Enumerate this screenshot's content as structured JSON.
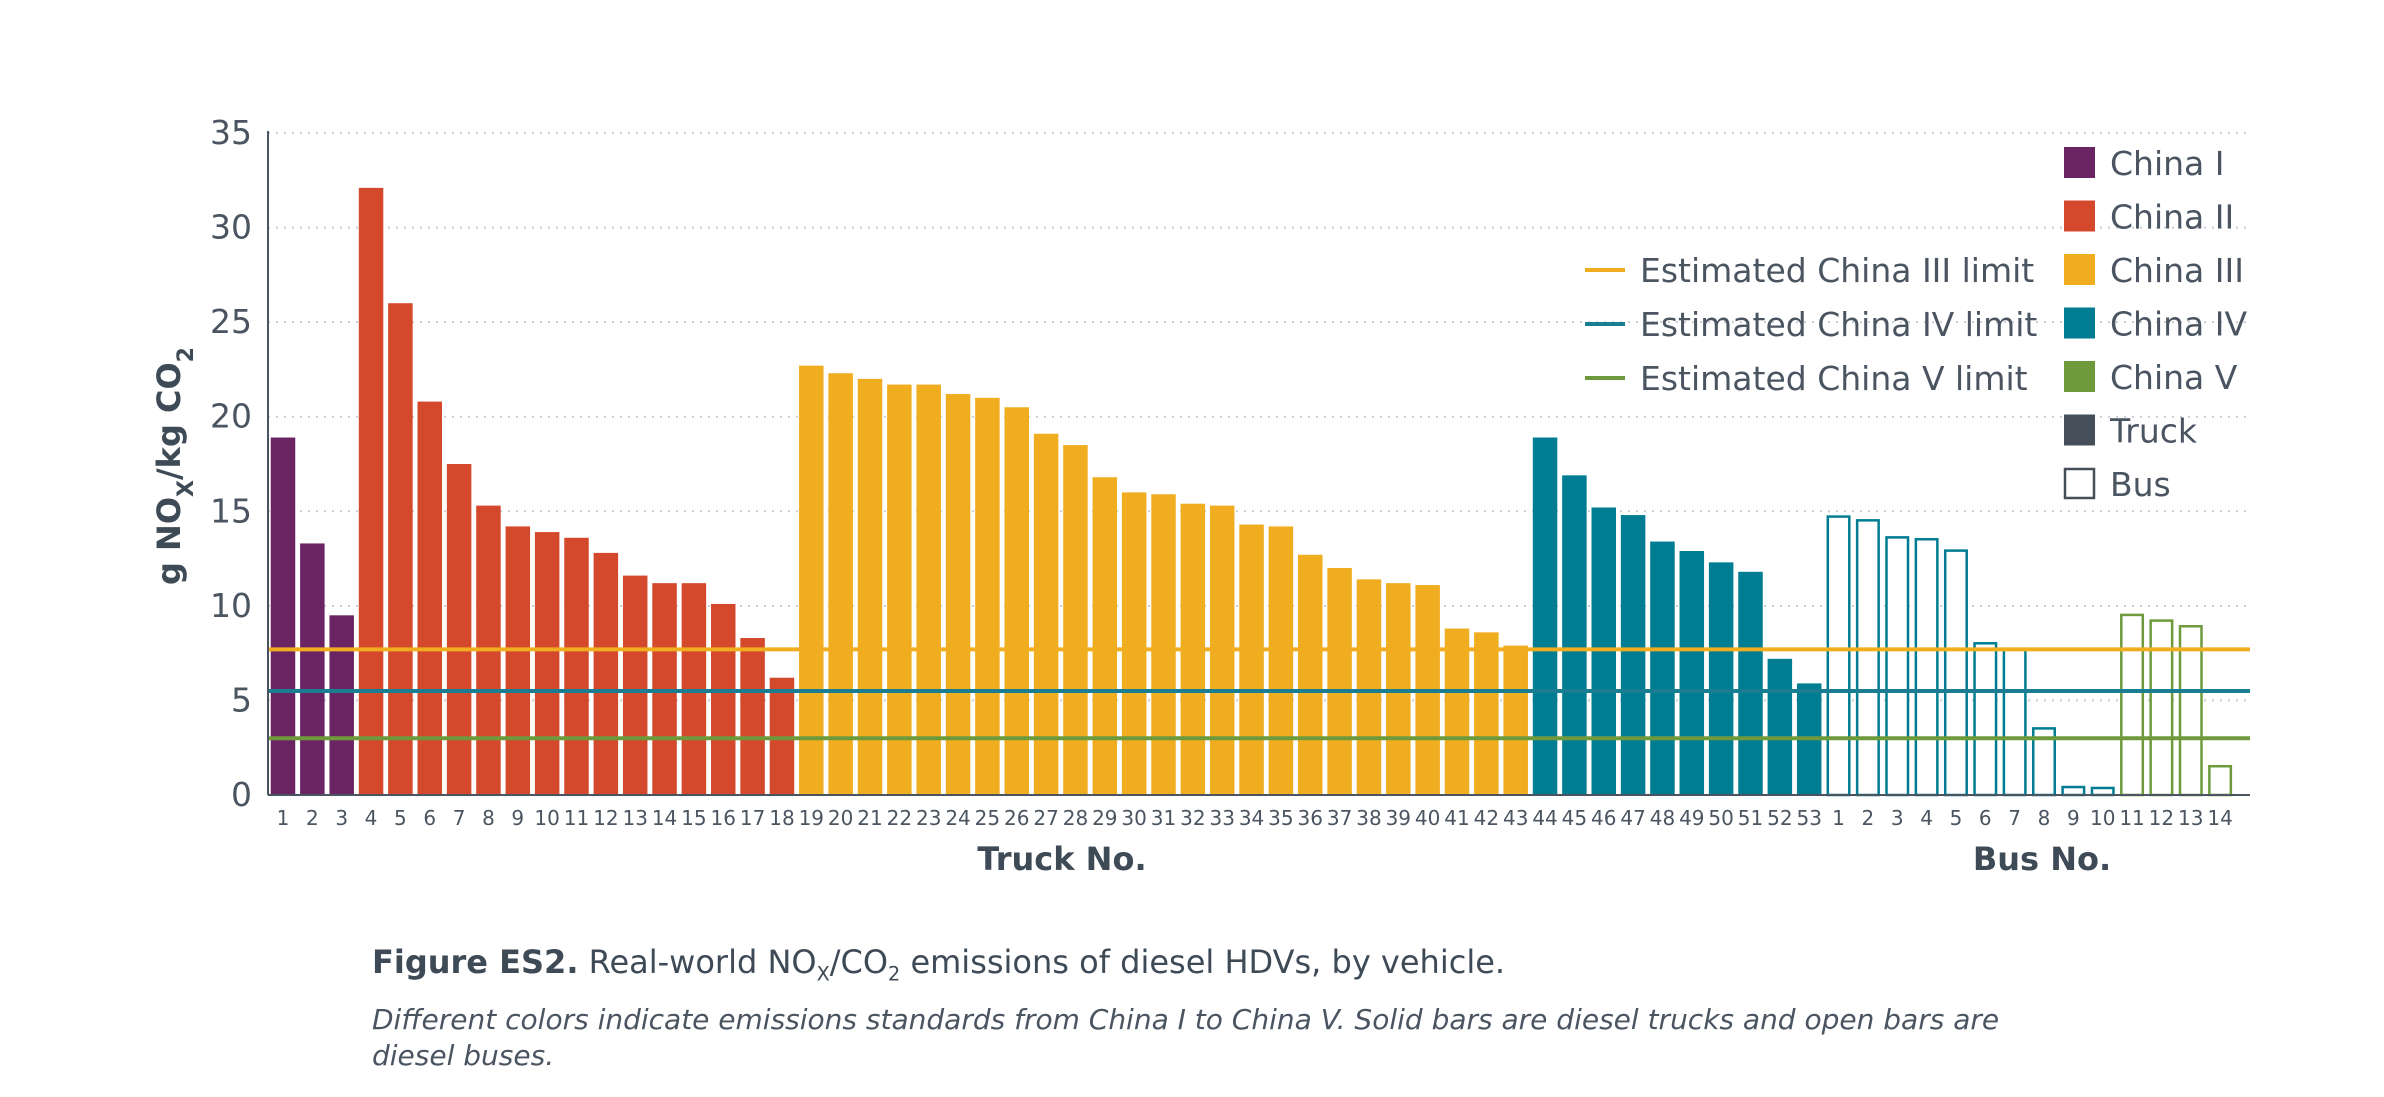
{
  "chart_data": {
    "type": "bar",
    "ylabel_parts": {
      "pre": "g NO",
      "sub1": "X",
      "mid": "/kg CO",
      "sub2": "2"
    },
    "yticks": [
      0,
      5,
      10,
      15,
      20,
      25,
      30,
      35
    ],
    "ylim": [
      0,
      35
    ],
    "grid": "horizontal dotted",
    "groups": [
      {
        "xlabel": "Truck No.",
        "bar_style": "solid",
        "categories": [
          "1",
          "2",
          "3",
          "4",
          "5",
          "6",
          "7",
          "8",
          "9",
          "10",
          "11",
          "12",
          "13",
          "14",
          "15",
          "16",
          "17",
          "18",
          "19",
          "20",
          "21",
          "22",
          "23",
          "24",
          "25",
          "26",
          "27",
          "28",
          "29",
          "30",
          "31",
          "32",
          "33",
          "34",
          "35",
          "36",
          "37",
          "38",
          "39",
          "40",
          "41",
          "42",
          "43",
          "44",
          "45",
          "46",
          "47",
          "48",
          "49",
          "50",
          "51",
          "52",
          "53"
        ],
        "values": [
          18.9,
          13.3,
          9.5,
          32.1,
          26.0,
          20.8,
          17.5,
          15.3,
          14.2,
          13.9,
          13.6,
          12.8,
          11.6,
          11.2,
          11.2,
          10.1,
          8.3,
          6.2,
          22.7,
          22.3,
          22.0,
          21.7,
          21.7,
          21.2,
          21.0,
          20.5,
          19.1,
          18.5,
          16.8,
          16.0,
          15.9,
          15.4,
          15.3,
          14.3,
          14.2,
          12.7,
          12.0,
          11.4,
          11.2,
          11.1,
          8.8,
          8.6,
          7.9,
          18.9,
          16.9,
          15.2,
          14.8,
          13.4,
          12.9,
          12.3,
          11.8,
          7.2,
          5.9
        ],
        "standards": [
          "China I",
          "China I",
          "China I",
          "China II",
          "China II",
          "China II",
          "China II",
          "China II",
          "China II",
          "China II",
          "China II",
          "China II",
          "China II",
          "China II",
          "China II",
          "China II",
          "China II",
          "China II",
          "China III",
          "China III",
          "China III",
          "China III",
          "China III",
          "China III",
          "China III",
          "China III",
          "China III",
          "China III",
          "China III",
          "China III",
          "China III",
          "China III",
          "China III",
          "China III",
          "China III",
          "China III",
          "China III",
          "China III",
          "China III",
          "China III",
          "China III",
          "China III",
          "China III",
          "China IV",
          "China IV",
          "China IV",
          "China IV",
          "China IV",
          "China IV",
          "China IV",
          "China IV",
          "China IV",
          "China IV"
        ]
      },
      {
        "xlabel": "Bus No.",
        "bar_style": "open",
        "categories": [
          "1",
          "2",
          "3",
          "4",
          "5",
          "6",
          "7",
          "8",
          "9",
          "10",
          "11",
          "12",
          "13",
          "14"
        ],
        "values": [
          14.8,
          14.6,
          13.7,
          13.6,
          13.0,
          8.1,
          7.8,
          3.6,
          0.5,
          0.45,
          9.6,
          9.3,
          9.0,
          1.6
        ],
        "standards": [
          "China IV",
          "China IV",
          "China IV",
          "China IV",
          "China IV",
          "China IV",
          "China IV",
          "China IV",
          "China IV",
          "China IV",
          "China V",
          "China V",
          "China V",
          "China V"
        ]
      }
    ],
    "reference_lines": [
      {
        "name": "Estimated China III limit",
        "value": 7.7,
        "color": "#f0ad1f"
      },
      {
        "name": "Estimated China IV limit",
        "value": 5.5,
        "color": "#1a7d92"
      },
      {
        "name": "Estimated China V limit",
        "value": 3.0,
        "color": "#6f9a3c"
      }
    ],
    "legend": {
      "placement": "top-right",
      "items": [
        {
          "label": "China I",
          "color": "#6a2463",
          "style": "solid"
        },
        {
          "label": "China II",
          "color": "#d4492b",
          "style": "solid"
        },
        {
          "label": "China III",
          "color": "#f0ad1f",
          "style": "solid"
        },
        {
          "label": "China IV",
          "color": "#007d92",
          "style": "solid"
        },
        {
          "label": "China V",
          "color": "#6f9a3c",
          "style": "solid"
        },
        {
          "label": "Truck",
          "color": "#444f59",
          "style": "solid"
        },
        {
          "label": "Bus",
          "color": "#444f59",
          "style": "open"
        }
      ]
    }
  },
  "caption": {
    "label": "Figure ES2.",
    "title_pre": " Real-world NO",
    "title_sub1": "X",
    "title_mid": "/CO",
    "title_sub2": "2",
    "title_post": " emissions of diesel HDVs, by vehicle.",
    "note": "Different colors indicate emissions standards from China I to China V. Solid bars are diesel trucks and open bars are diesel buses."
  }
}
